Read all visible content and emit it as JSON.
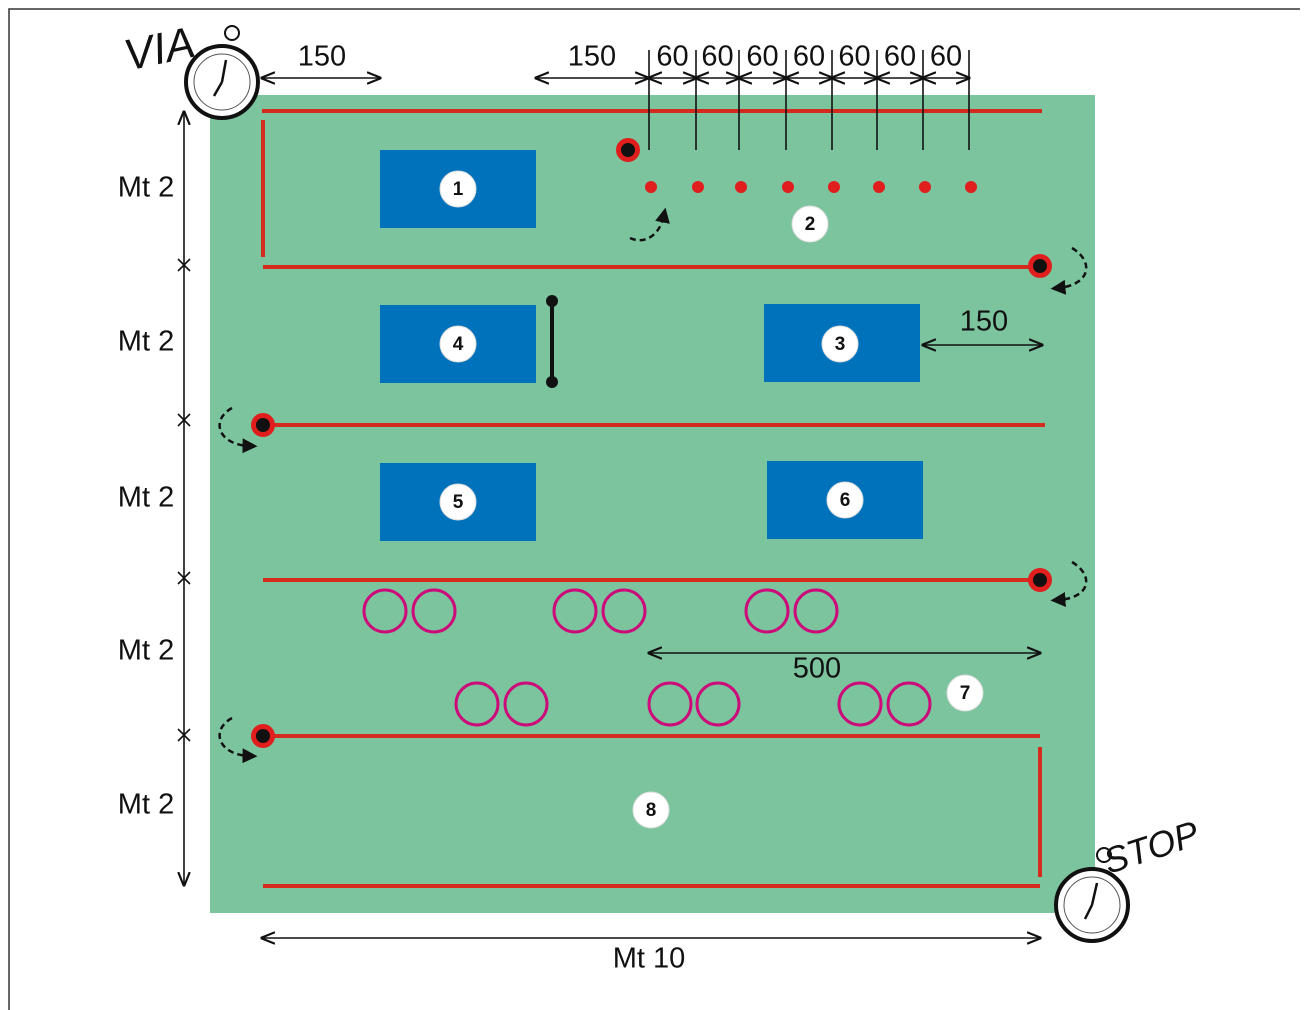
{
  "start": "VIA",
  "finish": "STOP",
  "dims_150": [
    "150",
    "150",
    "150"
  ],
  "dims_60": [
    "60",
    "60",
    "60",
    "60",
    "60",
    "60",
    "60"
  ],
  "rows": [
    "Mt 2",
    "Mt 2",
    "Mt 2",
    "Mt 2",
    "Mt 2"
  ],
  "dim_500": "500",
  "width": "Mt 10",
  "stations": [
    "1",
    "2",
    "3",
    "4",
    "5",
    "6",
    "7",
    "8"
  ]
}
